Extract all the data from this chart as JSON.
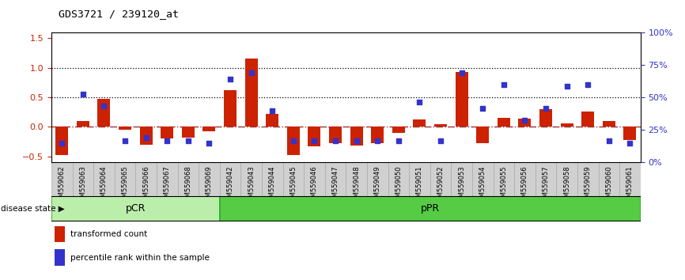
{
  "title": "GDS3721 / 239120_at",
  "samples": [
    "GSM559062",
    "GSM559063",
    "GSM559064",
    "GSM559065",
    "GSM559066",
    "GSM559067",
    "GSM559068",
    "GSM559069",
    "GSM559042",
    "GSM559043",
    "GSM559044",
    "GSM559045",
    "GSM559046",
    "GSM559047",
    "GSM559048",
    "GSM559049",
    "GSM559050",
    "GSM559051",
    "GSM559052",
    "GSM559053",
    "GSM559054",
    "GSM559055",
    "GSM559056",
    "GSM559057",
    "GSM559058",
    "GSM559059",
    "GSM559060",
    "GSM559061"
  ],
  "transformed_count": [
    -0.48,
    0.1,
    0.48,
    -0.05,
    -0.3,
    -0.2,
    -0.18,
    -0.07,
    0.62,
    1.15,
    0.22,
    -0.47,
    -0.33,
    -0.28,
    -0.32,
    -0.28,
    -0.1,
    0.12,
    0.04,
    0.93,
    -0.28,
    0.15,
    0.14,
    0.3,
    0.06,
    0.26,
    0.1,
    -0.22
  ],
  "percentile_rank": [
    20,
    70,
    58,
    22,
    25,
    22,
    22,
    20,
    85,
    92,
    53,
    22,
    22,
    22,
    22,
    22,
    22,
    62,
    22,
    92,
    55,
    80,
    43,
    55,
    78,
    80,
    22,
    20
  ],
  "pcr_count": 8,
  "ppr_count": 20,
  "bar_color": "#cc2200",
  "dot_color": "#3333cc",
  "ylim_left": [
    -0.6,
    1.6
  ],
  "ylim_right": [
    0,
    133.33
  ],
  "yticks_left": [
    -0.5,
    0.0,
    0.5,
    1.0,
    1.5
  ],
  "yticks_right": [
    0,
    33.33,
    66.67,
    100.0,
    133.33
  ],
  "ytick_labels_right": [
    "0%",
    "25%",
    "50%",
    "75%",
    "100%"
  ],
  "hline_y": [
    0.5,
    1.0
  ],
  "dashed_zero_color": "#993333",
  "pcr_color": "#bbeeaa",
  "ppr_color": "#55cc44",
  "label_pcr": "pCR",
  "label_ppr": "pPR",
  "legend_bar": "transformed count",
  "legend_dot": "percentile rank within the sample",
  "disease_state_label": "disease state"
}
